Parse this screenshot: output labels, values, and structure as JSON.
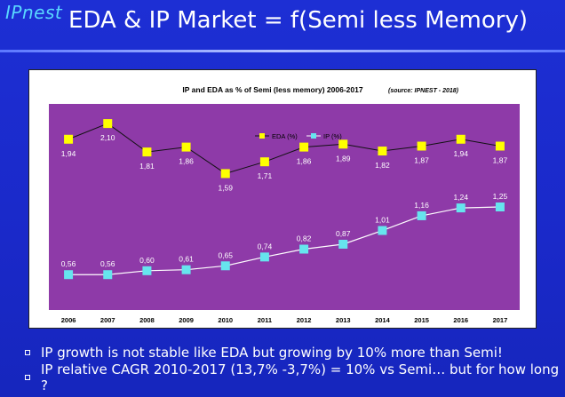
{
  "header": {
    "logo_text": "IPnest",
    "title": "EDA & IP Market = f(Semi less Memory)"
  },
  "colors": {
    "background": "#1a29c9",
    "plot_area": "#8e3aa8",
    "eda_marker": "#ffff00",
    "ip_marker": "#66e5ee",
    "logo": "#59d7ff"
  },
  "chart_data": {
    "type": "line",
    "title": "IP and EDA as % of Semi  (less memory) 2006-2017",
    "source_note": "(source: IPNEST - 2018)",
    "categories": [
      "2006",
      "2007",
      "2008",
      "2009",
      "2010",
      "2011",
      "2012",
      "2013",
      "2014",
      "2015",
      "2016",
      "2017"
    ],
    "series": [
      {
        "name": "EDA (%)",
        "values": [
          1.94,
          2.1,
          1.81,
          1.86,
          1.59,
          1.71,
          1.86,
          1.89,
          1.82,
          1.87,
          1.94,
          1.87
        ],
        "labels": [
          "1,94",
          "2,10",
          "1,81",
          "1,86",
          "1,59",
          "1,71",
          "1,86",
          "1,89",
          "1,82",
          "1,87",
          "1,94",
          "1,87"
        ],
        "marker_color": "#ffff00"
      },
      {
        "name": "IP (%)",
        "values": [
          0.56,
          0.56,
          0.6,
          0.61,
          0.65,
          0.74,
          0.82,
          0.87,
          1.01,
          1.16,
          1.24,
          1.25
        ],
        "labels": [
          "0,56",
          "0,56",
          "0,60",
          "0,61",
          "0,65",
          "0,74",
          "0,82",
          "0,87",
          "1,01",
          "1,16",
          "1,24",
          "1,25"
        ],
        "marker_color": "#66e5ee"
      }
    ],
    "ylim": [
      0.2,
      2.3
    ],
    "grid": false,
    "legend_placement": "top-center"
  },
  "bullets": [
    "IP growth is not stable like EDA but growing by 10% more than Semi!",
    "IP relative CAGR 2010-2017 (13,7% -3,7%) = 10% vs Semi… but for how long ?"
  ]
}
